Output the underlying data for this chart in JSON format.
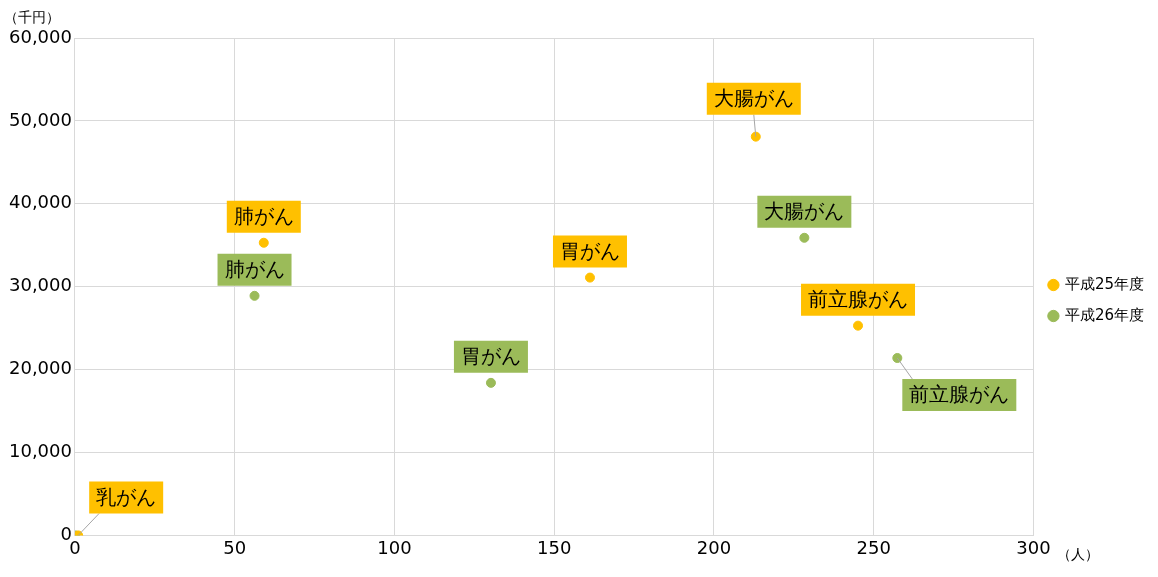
{
  "chart_data": {
    "type": "scatter",
    "xlabel": "（人）",
    "ylabel": "（千円）",
    "series": [
      {
        "name": "平成25年度",
        "color": "#ffc000",
        "x": [
          1,
          59.1,
          161.2,
          213.1,
          245.1
        ],
        "values": [
          0,
          35300,
          31100,
          48100,
          25300
        ]
      },
      {
        "name": "平成26年度",
        "color": "#9bbb59",
        "x": [
          0,
          56.2,
          130.2,
          228.3,
          257.4
        ],
        "values": [
          0,
          28900,
          18400,
          35900,
          21400
        ]
      }
    ],
    "xlim": [
      0,
      300
    ],
    "xticks": [
      0,
      50,
      100,
      150,
      200,
      250,
      300
    ],
    "ylim": [
      0,
      60000
    ],
    "yticks": [
      0,
      {
        "value": 10000,
        "label": "10,000"
      },
      {
        "value": 20000,
        "label": "20,000"
      },
      {
        "value": 30000,
        "label": "30,000"
      },
      {
        "value": 40000,
        "label": "40,000"
      },
      {
        "value": 50000,
        "label": "50,000"
      },
      {
        "value": 60000,
        "label": "60,000"
      }
    ],
    "annotations": [
      {
        "text": "乳がん",
        "x": 1,
        "y": 0
      },
      {
        "text": "肺がん",
        "x": 59.1,
        "y": 35300
      },
      {
        "text": "胃がん",
        "x": 161.2,
        "y": 31100
      },
      {
        "text": "大腸がん",
        "x": 213.1,
        "y": 48100
      },
      {
        "text": "前立腺がん",
        "x": 245.1,
        "y": 25300
      },
      {
        "text": "肺がん",
        "x": 56.2,
        "y": 28900
      },
      {
        "text": "胃がん",
        "x": 130.2,
        "y": 18400
      },
      {
        "text": "大腸がん",
        "x": 228.3,
        "y": 35900
      },
      {
        "text": "前立腺がん",
        "x": 257.4,
        "y": 21400
      }
    ],
    "grid": true,
    "legend": "right",
    "marker": "circle"
  }
}
